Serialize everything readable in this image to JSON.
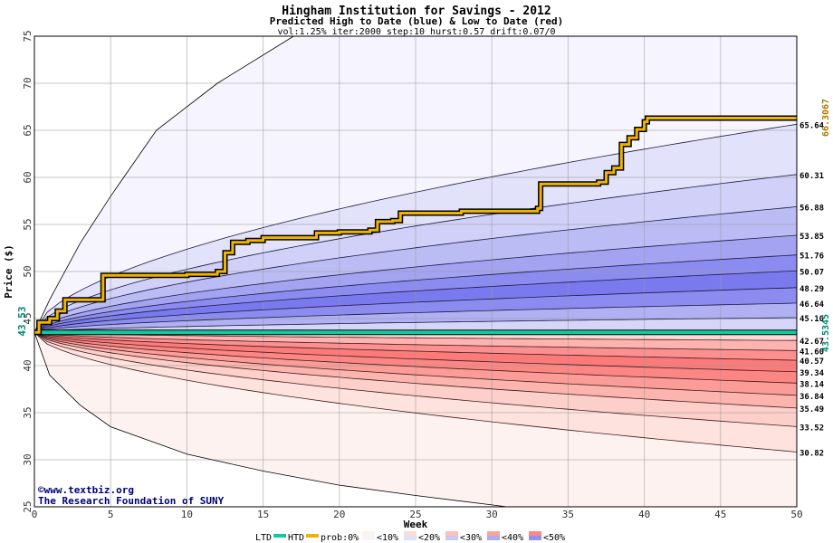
{
  "chart_data": {
    "type": "area",
    "title": "Hingham Institution for Savings - 2012",
    "subtitle": "Predicted High to Date (blue) &  Low to Date (red)",
    "params": "vol:1.25% iter:2000 step:10 hurst:0.57 drift:0.07/0",
    "xlabel": "Week",
    "ylabel": "Price ($)",
    "xlim": [
      0,
      50
    ],
    "ylim": [
      25,
      75
    ],
    "x_ticks": [
      0,
      5,
      10,
      15,
      20,
      25,
      30,
      35,
      40,
      45,
      50
    ],
    "y_ticks": [
      25,
      30,
      35,
      40,
      45,
      50,
      55,
      60,
      65,
      70,
      75
    ],
    "start_price": 43.53,
    "start_label": "43.53",
    "ltd_value": 43.5345,
    "ltd_label": "43.5345",
    "htd_value": 66.3067,
    "htd_label": "66.3067",
    "grid": true,
    "legend_position": "bottom",
    "colors": {
      "htd": "#f0b400",
      "ltd": "#14c8a0",
      "blue_bands": [
        "#f6f5ff",
        "#e0e0fb",
        "#c9c9f6",
        "#acacf2",
        "#9191f0",
        "#7777ee"
      ],
      "red_bands": [
        "#fef2f0",
        "#fedcd8",
        "#fcc0ba",
        "#fca29c",
        "#fc8886",
        "#fc7474"
      ]
    },
    "high_percentile_curves_end": [
      65.64,
      60.31,
      56.88,
      53.85,
      51.76,
      50.07,
      48.29,
      46.64,
      45.1
    ],
    "high_percentile_labels": [
      "65.64",
      "60.31",
      "56.88",
      "53.85",
      "51.76",
      "50.07",
      "48.29",
      "46.64",
      "45.10"
    ],
    "low_percentile_curves_end": [
      42.67,
      41.6,
      40.57,
      39.34,
      38.14,
      36.84,
      35.49,
      33.52,
      30.82
    ],
    "low_percentile_labels": [
      "42.67",
      "41.60",
      "40.57",
      "39.34",
      "38.14",
      "36.84",
      "35.49",
      "33.52",
      "30.82"
    ],
    "outer_high_curve": [
      [
        0,
        43.53
      ],
      [
        1,
        47
      ],
      [
        3,
        53
      ],
      [
        5,
        58
      ],
      [
        8,
        65
      ],
      [
        12,
        70
      ],
      [
        17,
        75
      ]
    ],
    "outer_low_curve": [
      [
        0,
        43.53
      ],
      [
        1,
        39
      ],
      [
        3,
        35.8
      ],
      [
        5,
        33.5
      ],
      [
        10,
        30.6
      ],
      [
        15,
        28.8
      ],
      [
        20,
        27.3
      ],
      [
        25,
        26.2
      ],
      [
        30,
        25.2
      ],
      [
        31,
        25
      ]
    ],
    "htd_path": [
      [
        0,
        43.53
      ],
      [
        0.3,
        44.6
      ],
      [
        1,
        45
      ],
      [
        1.5,
        45.8
      ],
      [
        2,
        47
      ],
      [
        4,
        47
      ],
      [
        4.5,
        49.6
      ],
      [
        10,
        49.7
      ],
      [
        12,
        50
      ],
      [
        12.5,
        52
      ],
      [
        13,
        53.1
      ],
      [
        14,
        53.3
      ],
      [
        15,
        53.6
      ],
      [
        18,
        53.6
      ],
      [
        18.5,
        54.1
      ],
      [
        20,
        54.2
      ],
      [
        22,
        54.4
      ],
      [
        22.5,
        55.3
      ],
      [
        23.5,
        55.4
      ],
      [
        24,
        56.2
      ],
      [
        28,
        56.4
      ],
      [
        33,
        56.7
      ],
      [
        33.2,
        59.3
      ],
      [
        37,
        59.5
      ],
      [
        37.5,
        60.5
      ],
      [
        38,
        61
      ],
      [
        38.5,
        63.5
      ],
      [
        39,
        64.2
      ],
      [
        39.5,
        65.1
      ],
      [
        40,
        65.9
      ],
      [
        40.2,
        66.3
      ],
      [
        50,
        66.3
      ]
    ],
    "ltd_path": [
      [
        0,
        43.53
      ],
      [
        50,
        43.53
      ]
    ]
  },
  "legend": {
    "ltd": "LTD",
    "htd": "HTD",
    "prob": "prob:0%",
    "items": [
      "<10%",
      "<20%",
      "<30%",
      "<40%",
      "<50%"
    ]
  },
  "credits": {
    "site": "©www.textbiz.org",
    "org": "The Research Foundation of SUNY"
  }
}
